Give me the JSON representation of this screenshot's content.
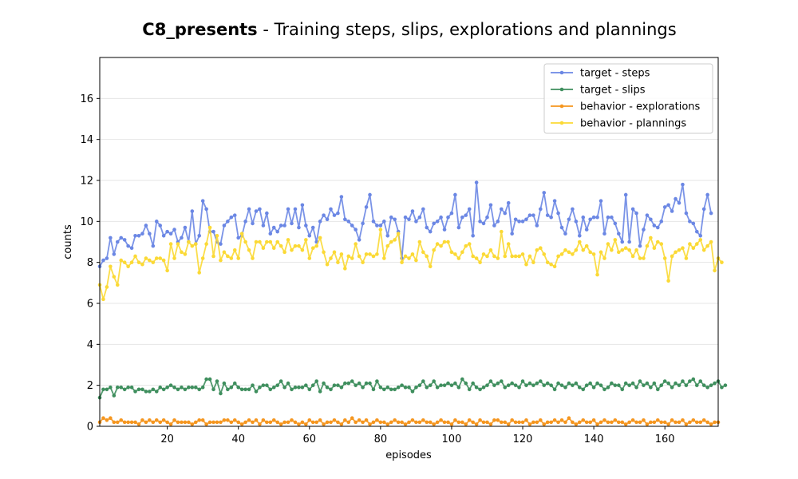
{
  "chart_data": {
    "type": "line",
    "title_bold": "C8_presents",
    "title_rest": " - Training steps, slips, explorations and plannings",
    "xlabel": "episodes",
    "ylabel": "counts",
    "xlim": [
      1,
      175
    ],
    "ylim": [
      0,
      18
    ],
    "x_ticks": [
      20,
      40,
      60,
      80,
      100,
      120,
      140,
      160
    ],
    "x_tick_labels": [
      "20",
      "40",
      "60",
      "80",
      "100",
      "120",
      "140",
      "160"
    ],
    "y_ticks": [
      0,
      2,
      4,
      6,
      8,
      10,
      12,
      14,
      16
    ],
    "y_tick_labels": [
      "0",
      "2",
      "4",
      "6",
      "8",
      "10",
      "12",
      "14",
      "16"
    ],
    "grid": "horizontal",
    "legend_position": "top-right",
    "x_start": 1,
    "series": [
      {
        "name": "target - steps",
        "color": "#6b87e4",
        "values": [
          7.8,
          8.1,
          8.2,
          9.2,
          8.4,
          9.0,
          9.2,
          9.1,
          8.8,
          8.7,
          9.3,
          9.3,
          9.4,
          9.8,
          9.4,
          8.8,
          10.0,
          9.8,
          9.3,
          9.5,
          9.4,
          9.6,
          9.0,
          9.2,
          9.7,
          9.0,
          10.5,
          8.9,
          9.3,
          11.0,
          10.6,
          9.5,
          9.5,
          9.0,
          8.9,
          9.8,
          10.0,
          10.2,
          10.3,
          9.2,
          9.3,
          10.0,
          10.6,
          9.9,
          10.5,
          10.6,
          9.8,
          10.4,
          9.4,
          9.7,
          9.5,
          9.8,
          9.8,
          10.6,
          9.9,
          10.6,
          9.7,
          10.8,
          9.8,
          9.3,
          9.7,
          9.0,
          10.0,
          10.3,
          10.1,
          10.6,
          10.3,
          10.4,
          11.2,
          10.1,
          10.0,
          9.8,
          9.6,
          9.1,
          9.9,
          10.7,
          11.3,
          10.0,
          9.8,
          9.8,
          10.0,
          9.3,
          10.2,
          10.1,
          9.5,
          8.2,
          10.2,
          10.1,
          10.5,
          10.0,
          10.2,
          10.6,
          9.7,
          9.5,
          9.9,
          10.0,
          10.2,
          9.6,
          10.2,
          10.4,
          11.3,
          9.7,
          10.2,
          10.3,
          10.6,
          9.3,
          11.9,
          10.0,
          9.9,
          10.2,
          10.8,
          9.8,
          10.0,
          10.6,
          10.4,
          10.9,
          9.4,
          10.1,
          10.0,
          10.0,
          10.1,
          10.3,
          10.3,
          9.8,
          10.6,
          11.4,
          10.3,
          10.2,
          11.0,
          10.4,
          9.7,
          9.4,
          10.1,
          10.6,
          10.0,
          9.3,
          10.2,
          9.6,
          10.1,
          10.2,
          10.2,
          11.0,
          9.4,
          10.2,
          10.2,
          9.9,
          9.4,
          9.0,
          11.3,
          9.0,
          10.6,
          10.4,
          8.8,
          9.6,
          10.3,
          10.1,
          9.8,
          9.7,
          10.0,
          10.7,
          10.8,
          10.5,
          11.1,
          10.9,
          11.8,
          10.4,
          10.0,
          9.9,
          9.5,
          9.3,
          10.6,
          11.3,
          10.4
        ]
      },
      {
        "name": "target - slips",
        "color": "#3f8f5e",
        "values": [
          1.4,
          1.8,
          1.8,
          1.9,
          1.5,
          1.9,
          1.9,
          1.8,
          1.9,
          1.9,
          1.7,
          1.8,
          1.8,
          1.7,
          1.7,
          1.8,
          1.7,
          1.9,
          1.8,
          1.9,
          2.0,
          1.9,
          1.8,
          1.9,
          1.8,
          1.9,
          1.9,
          1.9,
          1.8,
          1.9,
          2.3,
          2.3,
          1.8,
          2.2,
          1.6,
          2.1,
          1.8,
          1.9,
          2.1,
          1.9,
          1.8,
          1.8,
          1.8,
          2.0,
          1.7,
          1.9,
          2.0,
          2.0,
          1.8,
          1.9,
          2.0,
          2.2,
          1.9,
          2.1,
          1.8,
          1.9,
          1.9,
          1.9,
          2.0,
          1.8,
          2.0,
          2.2,
          1.7,
          2.1,
          1.9,
          1.8,
          2.0,
          2.0,
          1.9,
          2.1,
          2.1,
          2.2,
          2.0,
          2.1,
          1.9,
          2.1,
          2.1,
          1.8,
          2.2,
          1.9,
          1.8,
          1.9,
          1.8,
          1.8,
          1.9,
          2.0,
          1.9,
          1.9,
          1.7,
          1.9,
          2.0,
          2.2,
          1.9,
          2.0,
          2.2,
          1.9,
          2.0,
          2.0,
          2.1,
          2.0,
          2.1,
          1.9,
          2.3,
          2.1,
          1.8,
          2.1,
          1.9,
          1.8,
          1.9,
          2.0,
          2.2,
          2.0,
          2.1,
          2.2,
          1.9,
          2.0,
          2.1,
          2.0,
          1.9,
          2.2,
          2.0,
          2.1,
          2.0,
          2.1,
          2.2,
          2.0,
          2.1,
          2.0,
          1.8,
          2.1,
          2.0,
          1.9,
          2.1,
          2.0,
          2.1,
          1.9,
          1.8,
          2.0,
          2.1,
          1.9,
          2.1,
          2.0,
          1.8,
          1.9,
          2.1,
          2.0,
          2.0,
          1.8,
          2.1,
          2.0,
          2.1,
          1.9,
          2.2,
          2.0,
          2.1,
          1.9,
          2.1,
          1.8,
          2.0,
          2.2,
          2.1,
          1.9,
          2.1,
          2.0,
          2.2,
          2.0,
          2.2,
          2.3,
          2.0,
          2.2,
          2.0,
          1.9,
          2.0,
          2.1,
          2.2,
          1.9,
          2.0
        ]
      },
      {
        "name": "behavior - explorations",
        "color": "#f5961f",
        "values": [
          0.2,
          0.4,
          0.3,
          0.4,
          0.2,
          0.2,
          0.3,
          0.2,
          0.2,
          0.2,
          0.2,
          0.1,
          0.3,
          0.2,
          0.3,
          0.2,
          0.3,
          0.2,
          0.3,
          0.2,
          0.1,
          0.3,
          0.2,
          0.2,
          0.2,
          0.2,
          0.1,
          0.2,
          0.3,
          0.3,
          0.1,
          0.2,
          0.2,
          0.2,
          0.2,
          0.3,
          0.3,
          0.2,
          0.3,
          0.2,
          0.1,
          0.2,
          0.3,
          0.2,
          0.3,
          0.1,
          0.3,
          0.2,
          0.2,
          0.3,
          0.2,
          0.1,
          0.2,
          0.2,
          0.3,
          0.2,
          0.1,
          0.2,
          0.1,
          0.3,
          0.2,
          0.2,
          0.3,
          0.1,
          0.2,
          0.2,
          0.3,
          0.2,
          0.1,
          0.3,
          0.2,
          0.4,
          0.2,
          0.3,
          0.2,
          0.3,
          0.1,
          0.2,
          0.3,
          0.2,
          0.2,
          0.1,
          0.2,
          0.3,
          0.2,
          0.2,
          0.1,
          0.2,
          0.3,
          0.2,
          0.2,
          0.3,
          0.2,
          0.2,
          0.1,
          0.2,
          0.3,
          0.2,
          0.2,
          0.1,
          0.3,
          0.2,
          0.2,
          0.1,
          0.3,
          0.2,
          0.1,
          0.3,
          0.2,
          0.2,
          0.1,
          0.3,
          0.3,
          0.2,
          0.2,
          0.1,
          0.3,
          0.2,
          0.2,
          0.2,
          0.3,
          0.1,
          0.2,
          0.2,
          0.3,
          0.1,
          0.2,
          0.2,
          0.3,
          0.2,
          0.3,
          0.2,
          0.4,
          0.2,
          0.1,
          0.2,
          0.3,
          0.2,
          0.2,
          0.3,
          0.1,
          0.2,
          0.3,
          0.2,
          0.2,
          0.3,
          0.2,
          0.2,
          0.1,
          0.2,
          0.3,
          0.2,
          0.2,
          0.3,
          0.1,
          0.2,
          0.2,
          0.3,
          0.2,
          0.2,
          0.1,
          0.3,
          0.2,
          0.2,
          0.3,
          0.1,
          0.2,
          0.3,
          0.2,
          0.2,
          0.3,
          0.2,
          0.1,
          0.2,
          0.2
        ]
      },
      {
        "name": "behavior - plannings",
        "color": "#fbd935",
        "values": [
          6.9,
          6.2,
          6.8,
          7.8,
          7.3,
          6.9,
          8.1,
          8.0,
          7.8,
          8.0,
          8.3,
          8.0,
          7.9,
          8.2,
          8.1,
          8.0,
          8.2,
          8.2,
          8.1,
          7.6,
          8.9,
          8.2,
          8.9,
          8.5,
          8.4,
          9.0,
          8.8,
          8.9,
          7.5,
          8.2,
          8.9,
          9.7,
          8.3,
          9.3,
          8.1,
          8.5,
          8.3,
          8.2,
          8.6,
          8.2,
          9.4,
          9.0,
          8.6,
          8.2,
          9.0,
          9.0,
          8.7,
          9.0,
          9.0,
          8.7,
          9.0,
          8.8,
          8.5,
          9.1,
          8.6,
          8.8,
          8.8,
          8.6,
          9.1,
          8.2,
          8.7,
          8.8,
          9.2,
          8.5,
          7.9,
          8.2,
          8.5,
          8.0,
          8.4,
          7.7,
          8.3,
          8.2,
          8.9,
          8.3,
          8.0,
          8.4,
          8.4,
          8.3,
          8.4,
          9.6,
          8.2,
          8.8,
          9.0,
          9.1,
          9.4,
          8.0,
          8.3,
          8.2,
          8.4,
          8.1,
          9.0,
          8.5,
          8.3,
          7.8,
          8.6,
          8.9,
          8.8,
          9.0,
          9.0,
          8.5,
          8.4,
          8.2,
          8.5,
          8.8,
          8.9,
          8.3,
          8.2,
          8.0,
          8.4,
          8.3,
          8.6,
          8.3,
          8.2,
          9.5,
          8.3,
          8.9,
          8.3,
          8.3,
          8.3,
          8.4,
          7.9,
          8.3,
          8.0,
          8.6,
          8.7,
          8.4,
          8.0,
          7.9,
          7.8,
          8.3,
          8.4,
          8.6,
          8.5,
          8.4,
          8.6,
          9.0,
          8.6,
          8.8,
          8.5,
          8.4,
          7.4,
          8.5,
          8.2,
          8.9,
          8.6,
          9.1,
          8.5,
          8.6,
          8.7,
          8.6,
          8.3,
          8.6,
          8.2,
          8.2,
          8.8,
          9.2,
          8.7,
          9.0,
          8.9,
          8.2,
          7.1,
          8.3,
          8.5,
          8.6,
          8.7,
          8.2,
          8.9,
          8.7,
          8.9,
          9.1,
          8.6,
          8.8,
          9.0,
          7.6,
          8.2,
          8.0
        ]
      }
    ]
  }
}
